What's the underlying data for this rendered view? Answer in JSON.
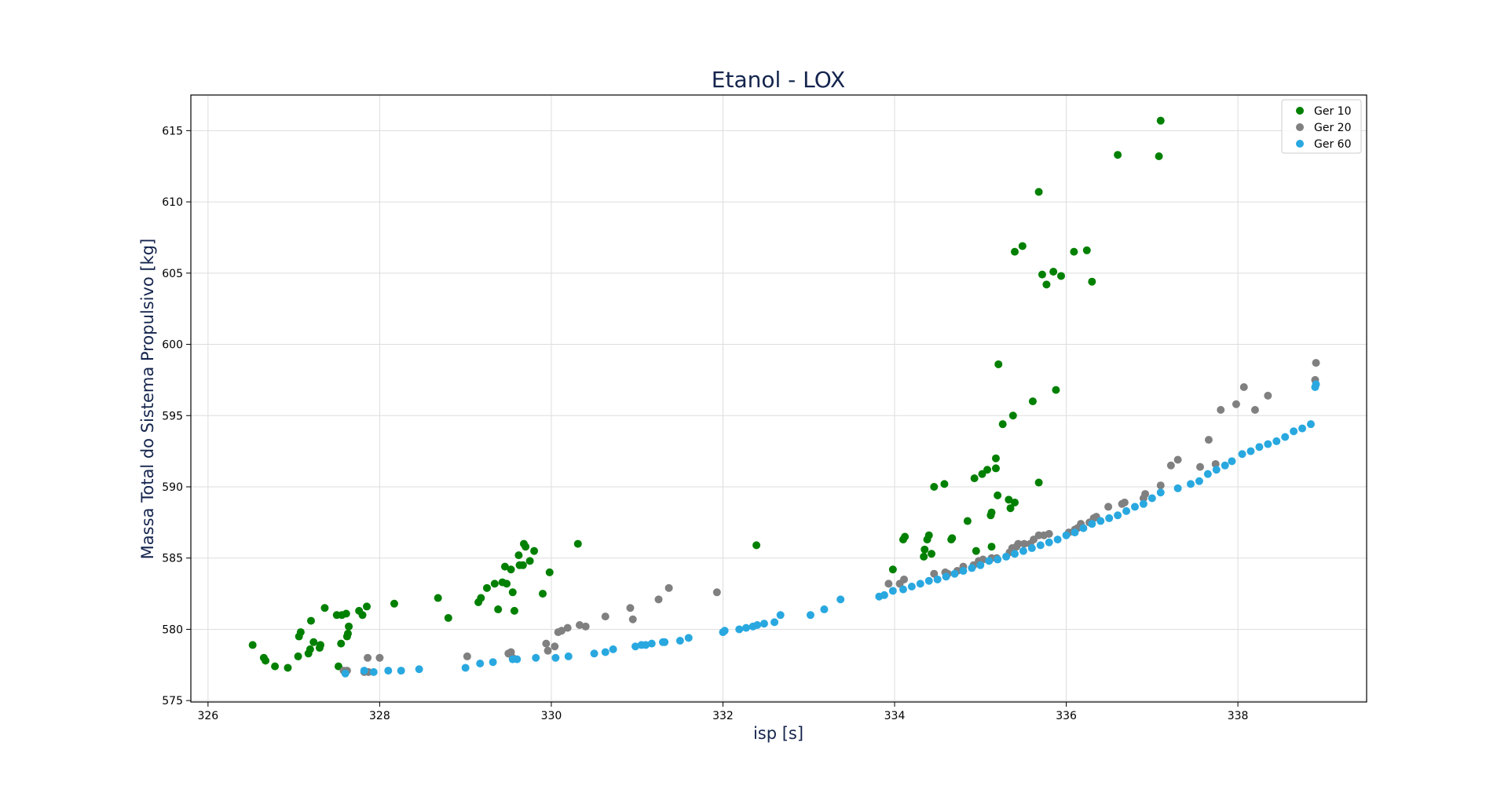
{
  "chart_data": {
    "type": "scatter",
    "title": "Etanol - LOX",
    "xlabel": "isp [s]",
    "ylabel": "Massa Total do Sistema Propulsivo [kg]",
    "xlim": [
      325.8,
      339.5
    ],
    "ylim": [
      574.9,
      617.5
    ],
    "xticks": [
      326,
      328,
      330,
      332,
      334,
      336,
      338
    ],
    "yticks": [
      575,
      580,
      585,
      590,
      595,
      600,
      605,
      610,
      615
    ],
    "grid": true,
    "legend_position": "top-right",
    "series": [
      {
        "name": "Ger 10",
        "color": "#008000",
        "points": [
          [
            326.52,
            578.9
          ],
          [
            326.65,
            578.0
          ],
          [
            326.67,
            577.8
          ],
          [
            326.78,
            577.4
          ],
          [
            326.93,
            577.3
          ],
          [
            327.05,
            578.1
          ],
          [
            327.06,
            579.5
          ],
          [
            327.08,
            579.8
          ],
          [
            327.17,
            578.3
          ],
          [
            327.19,
            578.6
          ],
          [
            327.2,
            580.6
          ],
          [
            327.23,
            579.1
          ],
          [
            327.3,
            578.7
          ],
          [
            327.31,
            578.9
          ],
          [
            327.36,
            581.5
          ],
          [
            327.5,
            581.0
          ],
          [
            327.52,
            577.4
          ],
          [
            327.55,
            579.0
          ],
          [
            327.56,
            581.0
          ],
          [
            327.61,
            581.1
          ],
          [
            327.62,
            579.5
          ],
          [
            327.63,
            579.7
          ],
          [
            327.64,
            580.2
          ],
          [
            327.76,
            581.3
          ],
          [
            327.8,
            581.0
          ],
          [
            327.85,
            581.6
          ],
          [
            328.17,
            581.8
          ],
          [
            328.68,
            582.2
          ],
          [
            328.8,
            580.8
          ],
          [
            329.15,
            581.9
          ],
          [
            329.18,
            582.2
          ],
          [
            329.25,
            582.9
          ],
          [
            329.34,
            583.2
          ],
          [
            329.38,
            581.4
          ],
          [
            329.43,
            583.3
          ],
          [
            329.46,
            584.4
          ],
          [
            329.48,
            583.2
          ],
          [
            329.53,
            584.2
          ],
          [
            329.55,
            582.6
          ],
          [
            329.57,
            581.3
          ],
          [
            329.62,
            585.2
          ],
          [
            329.63,
            584.5
          ],
          [
            329.67,
            584.5
          ],
          [
            329.68,
            586.0
          ],
          [
            329.7,
            585.8
          ],
          [
            329.75,
            584.8
          ],
          [
            329.8,
            585.5
          ],
          [
            329.9,
            582.5
          ],
          [
            329.98,
            584.0
          ],
          [
            330.31,
            586.0
          ],
          [
            332.39,
            585.9
          ],
          [
            333.98,
            584.2
          ],
          [
            334.1,
            586.3
          ],
          [
            334.12,
            586.5
          ],
          [
            334.34,
            585.1
          ],
          [
            334.35,
            585.6
          ],
          [
            334.38,
            586.3
          ],
          [
            334.4,
            586.6
          ],
          [
            334.43,
            585.3
          ],
          [
            334.46,
            590.0
          ],
          [
            334.58,
            590.2
          ],
          [
            334.66,
            586.3
          ],
          [
            334.67,
            586.4
          ],
          [
            334.85,
            587.6
          ],
          [
            334.93,
            590.6
          ],
          [
            334.95,
            585.5
          ],
          [
            335.02,
            590.9
          ],
          [
            335.08,
            591.2
          ],
          [
            335.12,
            588.0
          ],
          [
            335.13,
            588.2
          ],
          [
            335.13,
            585.8
          ],
          [
            335.18,
            591.3
          ],
          [
            335.18,
            592.0
          ],
          [
            335.2,
            589.4
          ],
          [
            335.21,
            598.6
          ],
          [
            335.26,
            594.4
          ],
          [
            335.33,
            589.1
          ],
          [
            335.35,
            588.5
          ],
          [
            335.38,
            595.0
          ],
          [
            335.4,
            588.9
          ],
          [
            335.4,
            606.5
          ],
          [
            335.49,
            606.9
          ],
          [
            335.61,
            596.0
          ],
          [
            335.68,
            590.3
          ],
          [
            335.68,
            610.7
          ],
          [
            335.72,
            604.9
          ],
          [
            335.77,
            604.2
          ],
          [
            335.85,
            605.1
          ],
          [
            335.88,
            596.8
          ],
          [
            335.94,
            604.8
          ],
          [
            336.09,
            606.5
          ],
          [
            336.24,
            606.6
          ],
          [
            336.3,
            604.4
          ],
          [
            336.6,
            613.3
          ],
          [
            337.08,
            613.2
          ],
          [
            337.1,
            615.7
          ]
        ]
      },
      {
        "name": "Ger 20",
        "color": "#808080",
        "points": [
          [
            327.58,
            577.1
          ],
          [
            327.62,
            577.1
          ],
          [
            327.82,
            577.0
          ],
          [
            327.86,
            578.0
          ],
          [
            327.87,
            577.0
          ],
          [
            328.0,
            578.0
          ],
          [
            329.02,
            578.1
          ],
          [
            329.5,
            578.3
          ],
          [
            329.53,
            578.4
          ],
          [
            329.55,
            578.0
          ],
          [
            329.94,
            579.0
          ],
          [
            329.96,
            578.5
          ],
          [
            330.04,
            578.8
          ],
          [
            330.08,
            579.8
          ],
          [
            330.12,
            579.9
          ],
          [
            330.19,
            580.1
          ],
          [
            330.33,
            580.3
          ],
          [
            330.4,
            580.2
          ],
          [
            330.63,
            580.9
          ],
          [
            330.92,
            581.5
          ],
          [
            330.95,
            580.7
          ],
          [
            331.25,
            582.1
          ],
          [
            331.37,
            582.9
          ],
          [
            331.93,
            582.6
          ],
          [
            333.93,
            583.2
          ],
          [
            334.06,
            583.2
          ],
          [
            334.11,
            583.5
          ],
          [
            334.46,
            583.9
          ],
          [
            334.59,
            584.0
          ],
          [
            334.62,
            583.9
          ],
          [
            334.73,
            584.1
          ],
          [
            334.8,
            584.4
          ],
          [
            334.92,
            584.5
          ],
          [
            334.98,
            584.8
          ],
          [
            335.03,
            584.9
          ],
          [
            335.13,
            585.0
          ],
          [
            335.19,
            585.0
          ],
          [
            335.34,
            585.4
          ],
          [
            335.37,
            585.7
          ],
          [
            335.42,
            585.8
          ],
          [
            335.44,
            586.0
          ],
          [
            335.51,
            586.0
          ],
          [
            335.58,
            586.0
          ],
          [
            335.62,
            586.3
          ],
          [
            335.68,
            586.6
          ],
          [
            335.74,
            586.6
          ],
          [
            335.8,
            586.7
          ],
          [
            336.03,
            586.8
          ],
          [
            336.1,
            587.0
          ],
          [
            336.13,
            587.1
          ],
          [
            336.17,
            587.4
          ],
          [
            336.27,
            587.5
          ],
          [
            336.32,
            587.8
          ],
          [
            336.35,
            587.9
          ],
          [
            336.49,
            588.6
          ],
          [
            336.65,
            588.8
          ],
          [
            336.68,
            588.9
          ],
          [
            336.9,
            589.2
          ],
          [
            336.92,
            589.5
          ],
          [
            337.1,
            590.1
          ],
          [
            337.22,
            591.5
          ],
          [
            337.3,
            591.9
          ],
          [
            337.56,
            591.4
          ],
          [
            337.66,
            593.3
          ],
          [
            337.74,
            591.6
          ],
          [
            337.8,
            595.4
          ],
          [
            337.98,
            595.8
          ],
          [
            338.07,
            597.0
          ],
          [
            338.2,
            595.4
          ],
          [
            338.35,
            596.4
          ],
          [
            338.9,
            597.5
          ],
          [
            338.91,
            598.7
          ]
        ]
      },
      {
        "name": "Ger 60",
        "color": "#29a8e0",
        "points": [
          [
            327.6,
            576.9
          ],
          [
            327.82,
            577.1
          ],
          [
            327.93,
            577.0
          ],
          [
            328.1,
            577.1
          ],
          [
            328.25,
            577.1
          ],
          [
            328.46,
            577.2
          ],
          [
            329.0,
            577.3
          ],
          [
            329.17,
            577.6
          ],
          [
            329.32,
            577.7
          ],
          [
            329.55,
            577.9
          ],
          [
            329.6,
            577.9
          ],
          [
            329.82,
            578.0
          ],
          [
            330.05,
            578.0
          ],
          [
            330.2,
            578.1
          ],
          [
            330.5,
            578.3
          ],
          [
            330.63,
            578.4
          ],
          [
            330.72,
            578.6
          ],
          [
            330.98,
            578.8
          ],
          [
            331.05,
            578.9
          ],
          [
            331.1,
            578.9
          ],
          [
            331.17,
            579.0
          ],
          [
            331.3,
            579.1
          ],
          [
            331.32,
            579.1
          ],
          [
            331.5,
            579.2
          ],
          [
            331.6,
            579.4
          ],
          [
            332.0,
            579.8
          ],
          [
            332.02,
            579.9
          ],
          [
            332.19,
            580.0
          ],
          [
            332.27,
            580.1
          ],
          [
            332.35,
            580.2
          ],
          [
            332.4,
            580.3
          ],
          [
            332.48,
            580.4
          ],
          [
            332.6,
            580.5
          ],
          [
            332.67,
            581.0
          ],
          [
            333.02,
            581.0
          ],
          [
            333.18,
            581.4
          ],
          [
            333.37,
            582.1
          ],
          [
            333.82,
            582.3
          ],
          [
            333.88,
            582.4
          ],
          [
            333.98,
            582.7
          ],
          [
            334.1,
            582.8
          ],
          [
            334.2,
            583.0
          ],
          [
            334.3,
            583.2
          ],
          [
            334.4,
            583.4
          ],
          [
            334.5,
            583.5
          ],
          [
            334.6,
            583.7
          ],
          [
            334.7,
            583.9
          ],
          [
            334.8,
            584.1
          ],
          [
            334.9,
            584.3
          ],
          [
            335.0,
            584.5
          ],
          [
            335.1,
            584.8
          ],
          [
            335.2,
            584.9
          ],
          [
            335.3,
            585.1
          ],
          [
            335.4,
            585.3
          ],
          [
            335.5,
            585.5
          ],
          [
            335.6,
            585.7
          ],
          [
            335.7,
            585.9
          ],
          [
            335.8,
            586.1
          ],
          [
            335.9,
            586.3
          ],
          [
            336.0,
            586.6
          ],
          [
            336.1,
            586.8
          ],
          [
            336.2,
            587.1
          ],
          [
            336.3,
            587.4
          ],
          [
            336.4,
            587.6
          ],
          [
            336.5,
            587.8
          ],
          [
            336.6,
            588.0
          ],
          [
            336.7,
            588.3
          ],
          [
            336.8,
            588.6
          ],
          [
            336.9,
            588.8
          ],
          [
            337.0,
            589.2
          ],
          [
            337.1,
            589.6
          ],
          [
            337.3,
            589.9
          ],
          [
            337.45,
            590.2
          ],
          [
            337.55,
            590.4
          ],
          [
            337.65,
            590.9
          ],
          [
            337.75,
            591.2
          ],
          [
            337.85,
            591.5
          ],
          [
            337.93,
            591.8
          ],
          [
            338.05,
            592.3
          ],
          [
            338.15,
            592.5
          ],
          [
            338.25,
            592.8
          ],
          [
            338.35,
            593.0
          ],
          [
            338.45,
            593.2
          ],
          [
            338.55,
            593.5
          ],
          [
            338.65,
            593.9
          ],
          [
            338.75,
            594.1
          ],
          [
            338.85,
            594.4
          ],
          [
            338.9,
            597.0
          ],
          [
            338.91,
            597.2
          ]
        ]
      }
    ]
  }
}
